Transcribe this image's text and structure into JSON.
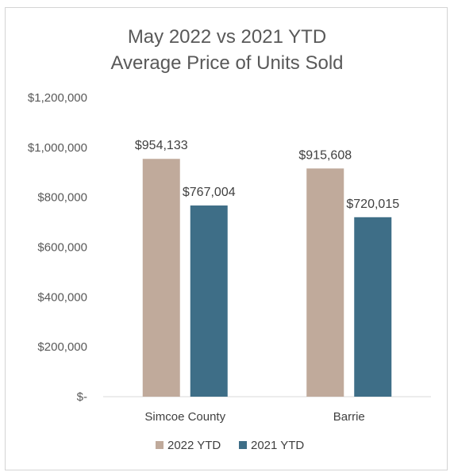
{
  "chart_data": {
    "type": "bar",
    "title_lines": [
      "May 2022 vs 2021 YTD",
      "Average Price of Units Sold"
    ],
    "categories": [
      "Simcoe County",
      "Barrie"
    ],
    "series": [
      {
        "name": "2022 YTD",
        "color": "#c0aa9b",
        "values": [
          954133,
          915608
        ],
        "labels": [
          "$954,133",
          "$915,608"
        ]
      },
      {
        "name": "2021 YTD",
        "color": "#3e6e87",
        "values": [
          767004,
          720015
        ],
        "labels": [
          "$767,004",
          "$720,015"
        ]
      }
    ],
    "ylim": [
      0,
      1200000
    ],
    "yticks": [
      0,
      200000,
      400000,
      600000,
      800000,
      1000000,
      1200000
    ],
    "ytick_labels": [
      "$-",
      "$200,000",
      "$400,000",
      "$600,000",
      "$800,000",
      "$1,000,000",
      "$1,200,000"
    ],
    "grid": false,
    "legend_position": "bottom",
    "axis_color": "#d9d9d9"
  }
}
